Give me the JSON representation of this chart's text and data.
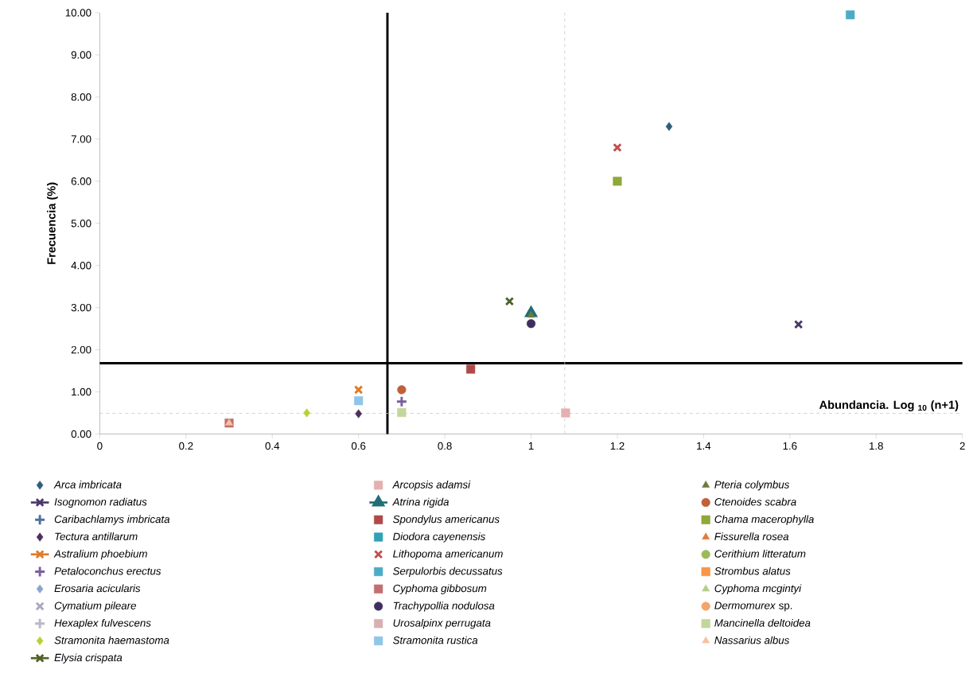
{
  "chart_data": {
    "type": "scatter",
    "xlabel": "Abundancia. Log $_{10}$ (n+1)",
    "ylabel": "Frecuencia (%)",
    "xlim": [
      0,
      2
    ],
    "ylim": [
      0,
      10
    ],
    "xticks": [
      0,
      0.2,
      0.4,
      0.6,
      0.8,
      1,
      1.2,
      1.4,
      1.6,
      1.8,
      2
    ],
    "yticks": [
      {
        "value": 0,
        "label": "0.00"
      },
      {
        "value": 1,
        "label": "1.00"
      },
      {
        "value": 2,
        "label": "2.00"
      },
      {
        "value": 3,
        "label": "3.00"
      },
      {
        "value": 4,
        "label": "4.00"
      },
      {
        "value": 5,
        "label": "5.00"
      },
      {
        "value": 6,
        "label": "6.00"
      },
      {
        "value": 7,
        "label": "7.00"
      },
      {
        "value": 8,
        "label": "8.00"
      },
      {
        "value": 9,
        "label": "9.00"
      },
      {
        "value": 10,
        "label": "10.00"
      }
    ],
    "grid": false,
    "legend": "bottom",
    "ref_lines": [
      {
        "axis": "x",
        "value": 0.667,
        "color": "#000000",
        "line_style": "solid"
      },
      {
        "axis": "y",
        "value": 1.68,
        "color": "#000000",
        "line_style": "solid"
      },
      {
        "axis": "x",
        "value": 1.078,
        "color": "#c8c8c8",
        "line_style": "dashed"
      },
      {
        "axis": "y",
        "value": 0.49,
        "color": "#c8c8c8",
        "line_style": "dashed"
      }
    ],
    "series": [
      {
        "name": "*Arca imbricata*",
        "color": "#2e5f7a",
        "marker": "diamond",
        "x": [
          1.32
        ],
        "values": [
          7.3
        ]
      },
      {
        "name": "*Isognomon radiatus*",
        "color": "#4b3768",
        "marker": "cross",
        "type": "line",
        "x": [
          1.62
        ],
        "values": [
          2.6
        ]
      },
      {
        "name": "*Caribachlamys imbricata*",
        "color": "#4f6f9f",
        "marker": "plus",
        "x": [
          null
        ],
        "values": [
          null
        ]
      },
      {
        "name": "*Tectura antillarum*",
        "color": "#4b2d5e",
        "marker": "diamond",
        "x": [
          0.6
        ],
        "values": [
          0.48
        ]
      },
      {
        "name": "*Astralium phoebium*",
        "color": "#e07b28",
        "marker": "cross",
        "type": "line",
        "x": [
          0.6
        ],
        "values": [
          1.05
        ]
      },
      {
        "name": "*Petaloconchus erectus*",
        "color": "#7a60a0",
        "marker": "plus",
        "x": [
          0.7
        ],
        "values": [
          0.77
        ]
      },
      {
        "name": "*Erosaria acicularis*",
        "color": "#8aa6cf",
        "marker": "diamond",
        "x": [
          null
        ],
        "values": [
          null
        ]
      },
      {
        "name": "*Cymatium pileare*",
        "color": "#a8a8c0",
        "marker": "cross",
        "x": [
          null
        ],
        "values": [
          null
        ]
      },
      {
        "name": "*Hexaplex fulvescens*",
        "color": "#b8b8c8",
        "marker": "plus",
        "x": [
          null
        ],
        "values": [
          null
        ]
      },
      {
        "name": "*Stramonita haemastoma*",
        "color": "#b5d334",
        "marker": "diamond",
        "x": [
          0.48
        ],
        "values": [
          0.5
        ]
      },
      {
        "name": "*Elysia crispata*",
        "color": "#4f6228",
        "marker": "cross",
        "type": "line",
        "x": [
          0.95
        ],
        "values": [
          3.15
        ]
      },
      {
        "name": "*Arcopsis adamsi*",
        "color": "#e6b0b0",
        "marker": "square",
        "x": [
          1.08
        ],
        "values": [
          0.5
        ]
      },
      {
        "name": "*Atrina rigida*",
        "color": "#1f6e78",
        "marker": "triangle",
        "type": "line",
        "x": [
          1.0
        ],
        "values": [
          2.87
        ]
      },
      {
        "name": "*Spondylus americanus*",
        "color": "#b04a4a",
        "marker": "square",
        "x": [
          0.86
        ],
        "values": [
          1.54
        ]
      },
      {
        "name": "*Diodora cayenensis*",
        "color": "#31a2b3",
        "marker": "square",
        "x": [
          null
        ],
        "values": [
          null
        ]
      },
      {
        "name": "*Lithopoma americanum*",
        "color": "#c0504d",
        "marker": "cross",
        "x": [
          1.2
        ],
        "values": [
          6.8
        ]
      },
      {
        "name": "*Serpulorbis decussatus*",
        "color": "#4bacc6",
        "marker": "square",
        "x": [
          1.74
        ],
        "values": [
          9.95
        ]
      },
      {
        "name": "*Cyphoma gibbosum*",
        "color": "#c07070",
        "marker": "square",
        "x": [
          0.3
        ],
        "values": [
          0.26
        ]
      },
      {
        "name": "*Trachypollia nodulosa*",
        "color": "#3f2f5f",
        "marker": "circle",
        "x": [
          1.0
        ],
        "values": [
          2.62
        ]
      },
      {
        "name": "*Urosalpinx perrugata*",
        "color": "#d8b0b0",
        "marker": "square",
        "x": [
          null
        ],
        "values": [
          null
        ]
      },
      {
        "name": "*Stramonita rustica*",
        "color": "#8fc5e8",
        "marker": "square",
        "x": [
          0.6
        ],
        "values": [
          0.79
        ]
      },
      {
        "name": "*Pteria colymbus*",
        "color": "#6e7a3a",
        "marker": "triangle",
        "x": [
          1.0
        ],
        "values": [
          2.82
        ]
      },
      {
        "name": "*Ctenoides scabra*",
        "color": "#c0603a",
        "marker": "circle",
        "x": [
          0.7
        ],
        "values": [
          1.05
        ]
      },
      {
        "name": "*Chama macerophylla*",
        "color": "#8fa83a",
        "marker": "square",
        "x": [
          1.2
        ],
        "values": [
          6.0
        ]
      },
      {
        "name": "*Fissurella rosea*",
        "color": "#e07b39",
        "marker": "triangle",
        "x": [
          null
        ],
        "values": [
          null
        ]
      },
      {
        "name": "*Cerithium litteratum*",
        "color": "#9bbb59",
        "marker": "circle",
        "x": [
          null
        ],
        "values": [
          null
        ]
      },
      {
        "name": "*Strombus alatus*",
        "color": "#f79646",
        "marker": "square",
        "x": [
          null
        ],
        "values": [
          null
        ]
      },
      {
        "name": "*Cyphoma mcgintyi*",
        "color": "#b6cc8a",
        "marker": "triangle",
        "x": [
          null
        ],
        "values": [
          null
        ]
      },
      {
        "name": "*Dermomurex* sp.",
        "color": "#f5a46a",
        "marker": "circle",
        "x": [
          null
        ],
        "values": [
          null
        ]
      },
      {
        "name": "*Mancinella deltoidea*",
        "color": "#c3d69b",
        "marker": "square",
        "x": [
          0.7
        ],
        "values": [
          0.51
        ]
      },
      {
        "name": "*Nassarius albus*",
        "color": "#fac0a0",
        "marker": "triangle",
        "x": [
          0.3
        ],
        "values": [
          0.26
        ]
      }
    ]
  }
}
